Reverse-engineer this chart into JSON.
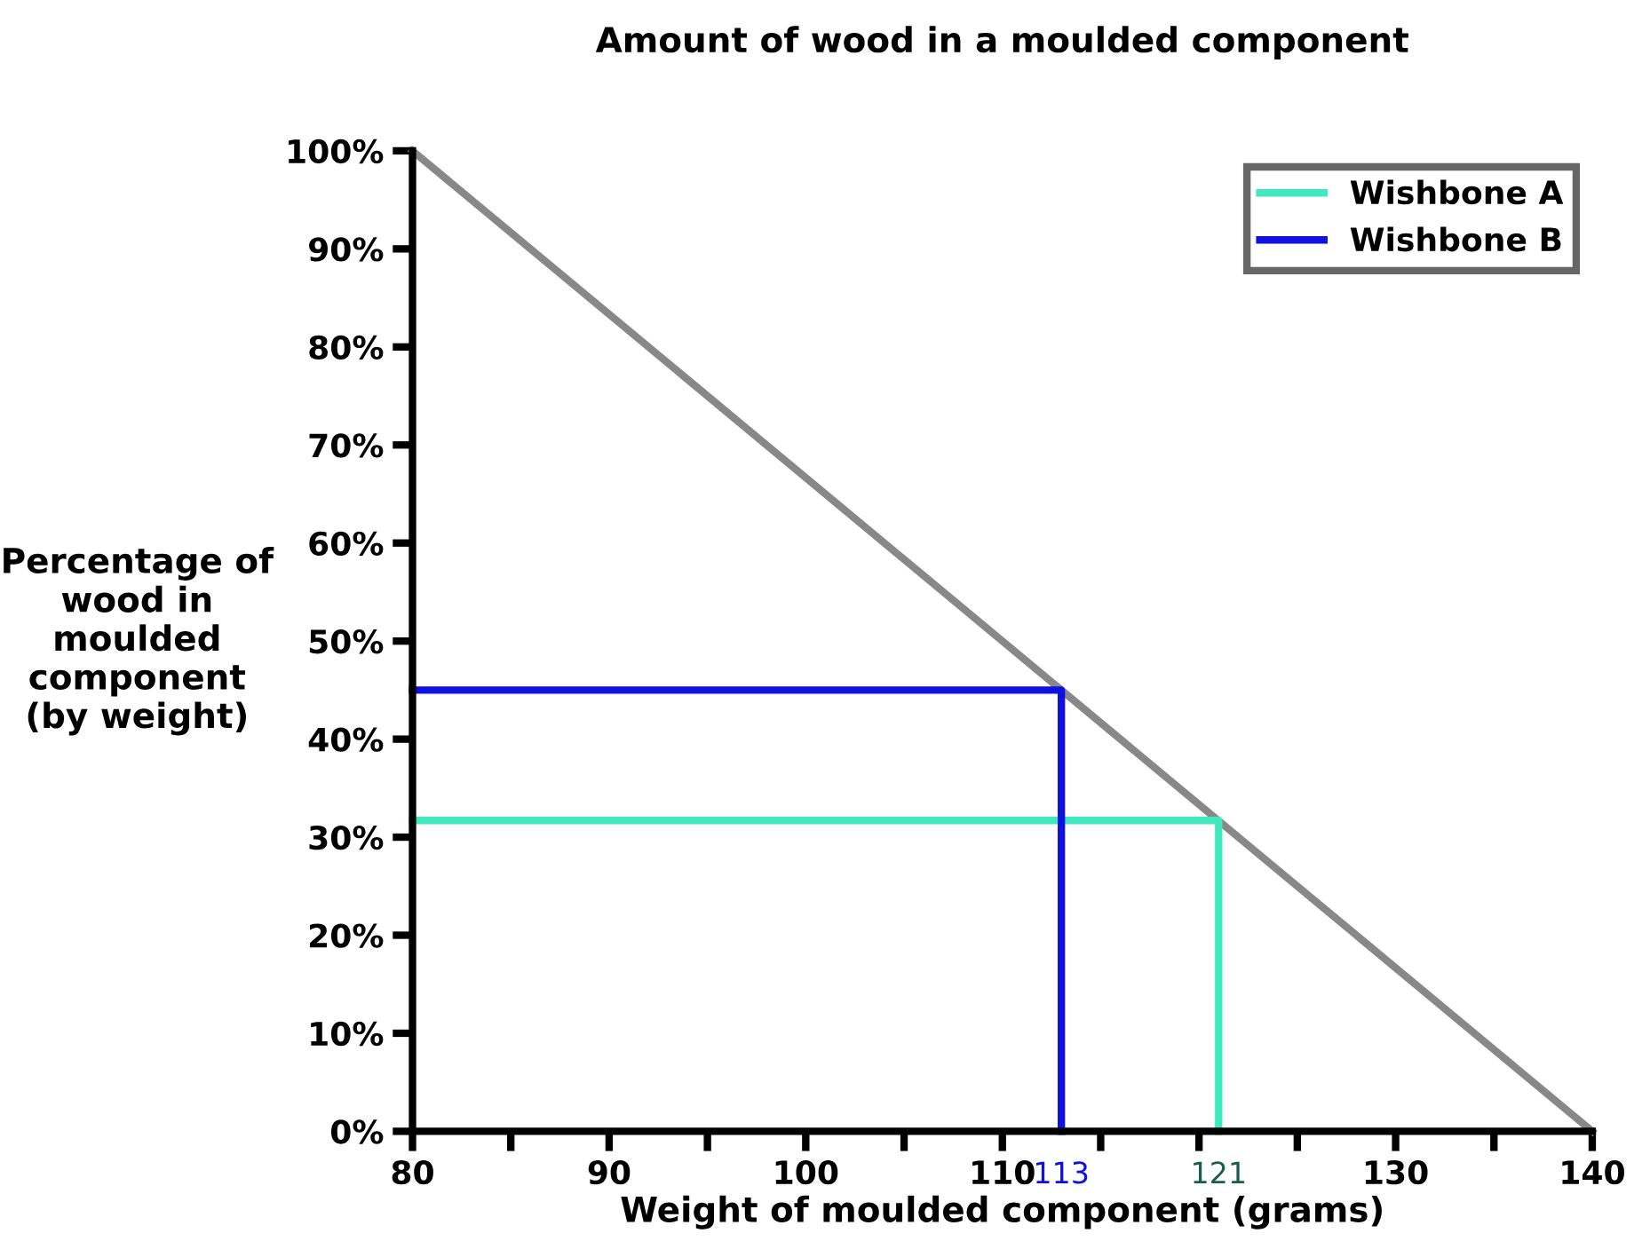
{
  "chart_data": {
    "type": "line",
    "title": "Amount of wood in a moulded component",
    "xlabel": "Weight of moulded component (grams)",
    "ylabel": "Percentage of\nwood in\nmoulded\ncomponent\n(by weight)",
    "series": [
      {
        "color": "#888888",
        "x": [
          80,
          140
        ],
        "values": [
          100,
          0
        ]
      },
      {
        "name": "Wishbone A",
        "color": "#40e8c0",
        "x": [
          80,
          121,
          121
        ],
        "values": [
          31.7,
          31.7,
          0
        ]
      },
      {
        "name": "Wishbone B",
        "color": "#1010e0",
        "x": [
          80,
          113,
          113
        ],
        "values": [
          45,
          45,
          0
        ]
      }
    ],
    "annotations": [
      {
        "text": "113",
        "x": 113,
        "y": 0
      },
      {
        "text": "121",
        "x": 121,
        "y": 0
      }
    ],
    "xlim": [
      80,
      140
    ],
    "xticks": [
      80,
      {
        "value": 85,
        "label": null
      },
      90,
      {
        "value": 95,
        "label": null
      },
      100,
      {
        "value": 105,
        "label": null
      },
      110,
      {
        "value": 115,
        "label": null
      },
      {
        "value": 120,
        "label": null
      },
      {
        "value": 125,
        "label": null
      },
      130,
      {
        "value": 135,
        "label": null
      },
      140
    ],
    "ylim": [
      0,
      100
    ],
    "yticks": [
      {
        "value": 0,
        "label": "0%"
      },
      {
        "value": 10,
        "label": "10%"
      },
      {
        "value": 20,
        "label": "20%"
      },
      {
        "value": 30,
        "label": "30%"
      },
      {
        "value": 40,
        "label": "40%"
      },
      {
        "value": 50,
        "label": "50%"
      },
      {
        "value": 60,
        "label": "60%"
      },
      {
        "value": 70,
        "label": "70%"
      },
      {
        "value": 80,
        "label": "80%"
      },
      {
        "value": 90,
        "label": "90%"
      },
      {
        "value": 100,
        "label": "100%"
      }
    ],
    "grid": false,
    "legend": "top right",
    "marker": "none",
    "line_style": "solid"
  }
}
